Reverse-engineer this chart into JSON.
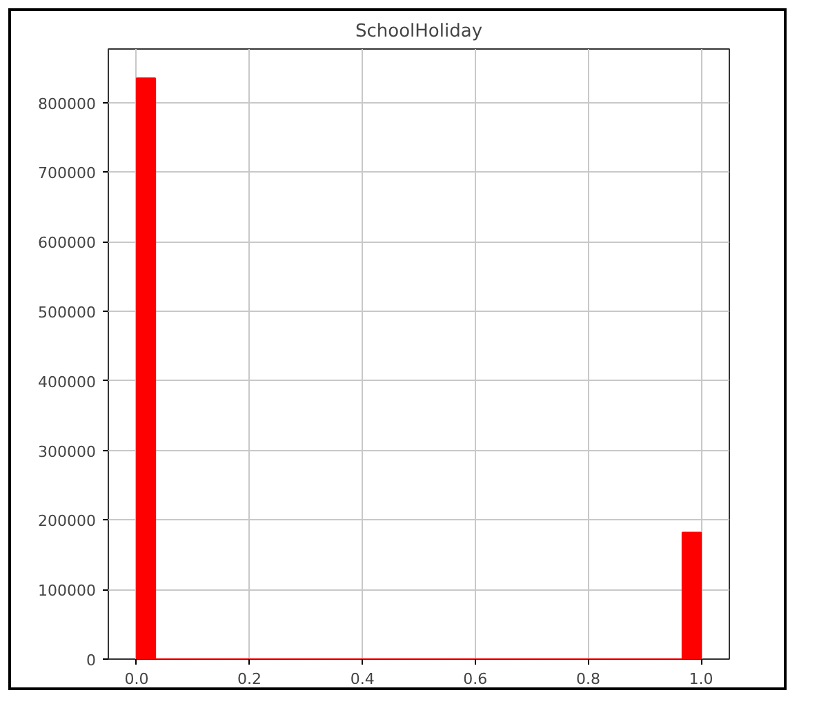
{
  "chart_data": {
    "type": "histogram",
    "title": "SchoolHoliday",
    "bins": [
      0,
      0.0333,
      0.0667,
      0.1,
      0.1333,
      0.1667,
      0.2,
      0.2333,
      0.2667,
      0.3,
      0.3333,
      0.3667,
      0.4,
      0.4333,
      0.4667,
      0.5,
      0.5333,
      0.5667,
      0.6,
      0.6333,
      0.6667,
      0.7,
      0.7333,
      0.7667,
      0.8,
      0.8333,
      0.8667,
      0.9,
      0.9333,
      0.9667,
      1
    ],
    "values": [
      835000,
      0,
      0,
      0,
      0,
      0,
      0,
      0,
      0,
      0,
      0,
      0,
      0,
      0,
      0,
      0,
      0,
      0,
      0,
      0,
      0,
      0,
      0,
      0,
      0,
      0,
      0,
      0,
      0,
      182000
    ],
    "color": "#ff0000",
    "xlim": [
      -0.05,
      1.05
    ],
    "xticks": [
      {
        "value": 0,
        "label": "0.0"
      },
      {
        "value": 0.2,
        "label": "0.2"
      },
      {
        "value": 0.4,
        "label": "0.4"
      },
      {
        "value": 0.6,
        "label": "0.6"
      },
      {
        "value": 0.8,
        "label": "0.8"
      },
      {
        "value": 1,
        "label": "1.0"
      }
    ],
    "ylim": [
      0,
      877000
    ],
    "yticks": [
      0,
      100000,
      200000,
      300000,
      400000,
      500000,
      600000,
      700000,
      800000
    ],
    "grid": true
  }
}
